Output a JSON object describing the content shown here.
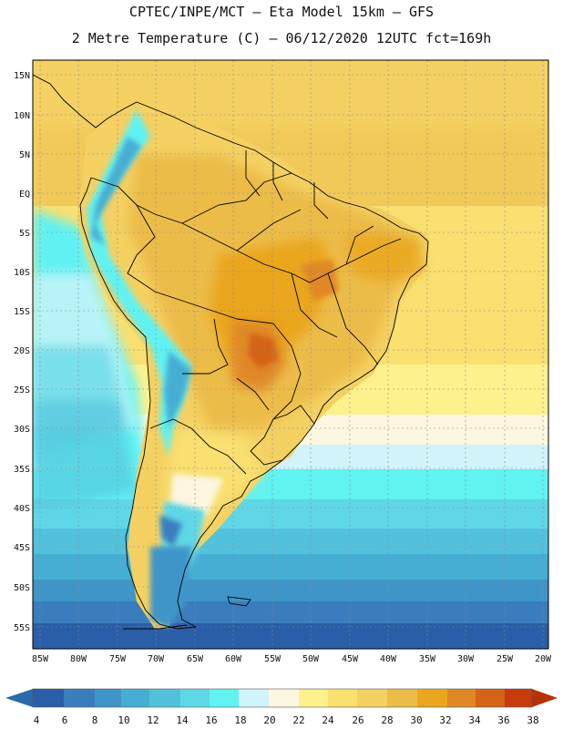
{
  "header": {
    "line1": "CPTEC/INPE/MCT –  Eta Model 15km – GFS",
    "line2": "2 Metre Temperature (C) – 06/12/2020 12UTC fct=169h"
  },
  "map": {
    "lat_labels": [
      "15N",
      "10N",
      "5N",
      "EQ",
      "5S",
      "10S",
      "15S",
      "20S",
      "25S",
      "30S",
      "35S",
      "40S",
      "45S",
      "50S",
      "55S"
    ],
    "lon_labels": [
      "85W",
      "80W",
      "75W",
      "70W",
      "65W",
      "60W",
      "55W",
      "50W",
      "45W",
      "40W",
      "35W",
      "30W",
      "25W",
      "20W"
    ]
  },
  "colorbar": {
    "levels": [
      "4",
      "6",
      "8",
      "10",
      "12",
      "14",
      "16",
      "18",
      "20",
      "22",
      "24",
      "26",
      "28",
      "30",
      "32",
      "34",
      "36",
      "38"
    ],
    "colors": [
      "#2b5ea8",
      "#3a7dbd",
      "#3f95c8",
      "#46aed3",
      "#52c2dc",
      "#5fd7e6",
      "#61f2f2",
      "#d0f4f9",
      "#fdf6e0",
      "#fdf18e",
      "#f9e071",
      "#f4d162",
      "#ecbc48",
      "#eaa61f",
      "#e08825",
      "#d56419",
      "#c63c0e",
      "#b83208"
    ]
  }
}
